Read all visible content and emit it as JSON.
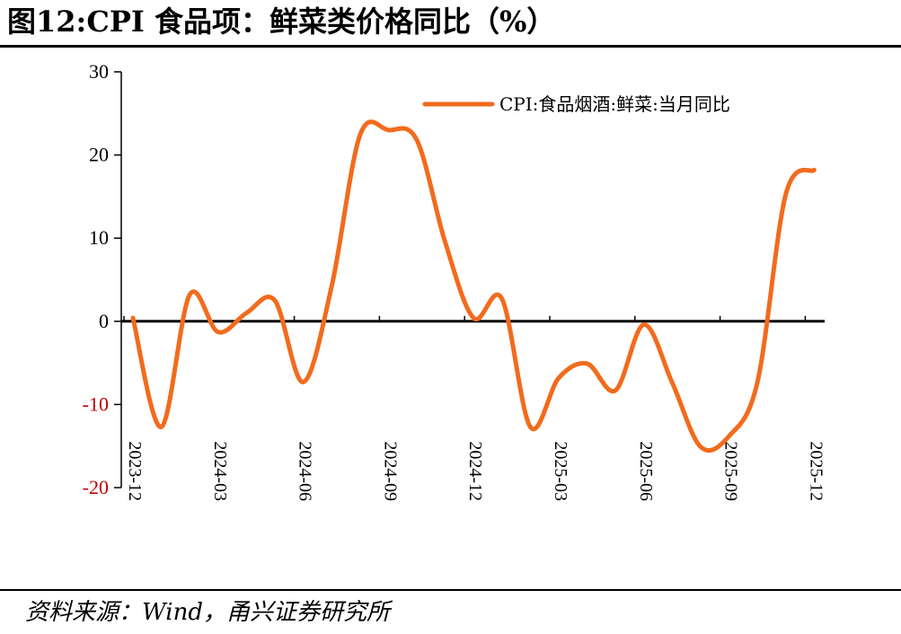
{
  "header": {
    "title": "图12:CPI 食品项：鲜菜类价格同比（%）"
  },
  "footer": {
    "source": "资料来源：Wind，甬兴证券研究所"
  },
  "chart_data": {
    "type": "line",
    "title": "图12:CPI 食品项：鲜菜类价格同比（%）",
    "xlabel": "",
    "ylabel": "",
    "ylim": [
      -20,
      30
    ],
    "yticks": [
      30,
      20,
      10,
      0,
      -10,
      -20
    ],
    "negative_tick_color": "#c00000",
    "xticks": [
      "2023-12",
      "2024-03",
      "2024-06",
      "2024-09",
      "2024-12",
      "2025-03",
      "2025-06",
      "2025-09",
      "2025-12"
    ],
    "grid": false,
    "legend": "top-right",
    "series": [
      {
        "name": "CPI:食品烟酒:鲜菜:当月同比",
        "color": "#f26b1d",
        "x": [
          "2023-12",
          "2024-01",
          "2024-02",
          "2024-03",
          "2024-04",
          "2024-05",
          "2024-06",
          "2024-07",
          "2024-08",
          "2024-09",
          "2024-10",
          "2024-11",
          "2024-12",
          "2025-01",
          "2025-02",
          "2025-03",
          "2025-04",
          "2025-05",
          "2025-06",
          "2025-07",
          "2025-08",
          "2025-09",
          "2025-10",
          "2025-11",
          "2025-12"
        ],
        "values": [
          0.4,
          -12.7,
          3.2,
          -1.3,
          1.0,
          2.5,
          -7.3,
          4.2,
          22.4,
          23.0,
          21.8,
          9.5,
          0.4,
          2.7,
          -12.7,
          -6.8,
          -5.1,
          -8.3,
          -0.4,
          -7.4,
          -15.1,
          -13.8,
          -7.3,
          15.3,
          18.2
        ]
      }
    ]
  }
}
